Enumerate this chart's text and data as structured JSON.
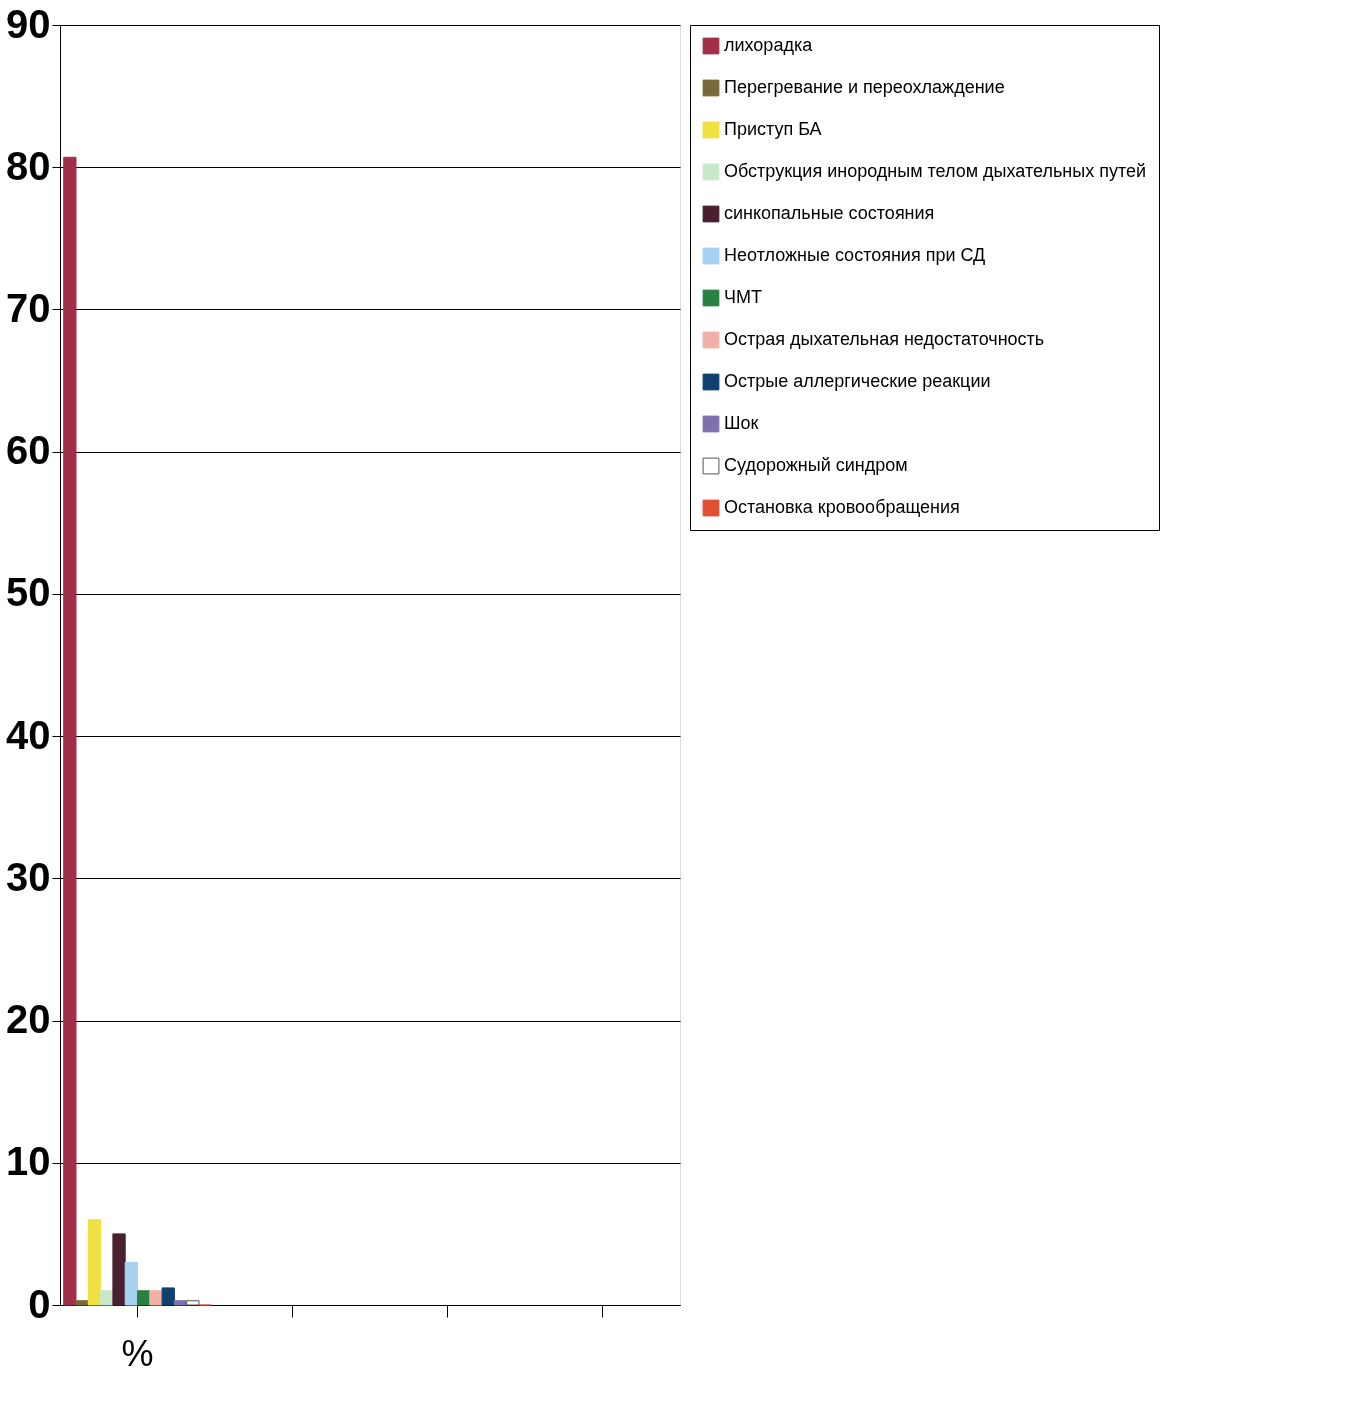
{
  "chart_data": {
    "type": "bar",
    "categories": [
      "%",
      null,
      null,
      null
    ],
    "xlabel": null,
    "series": [
      {
        "name": "лихорадка",
        "color": "#a0304a",
        "values": [
          80.7,
          null,
          null,
          null
        ]
      },
      {
        "name": "Перегревание и переохлаждение",
        "color": "#7a6a3a",
        "values": [
          0.3,
          null,
          null,
          null
        ]
      },
      {
        "name": "Приступ БА",
        "color": "#f0e040",
        "values": [
          6,
          null,
          null,
          null
        ]
      },
      {
        "name": "Обструкция инородным телом дыхательных путей",
        "color": "#c8e8c8",
        "values": [
          1,
          null,
          null,
          null
        ]
      },
      {
        "name": "синкопальные состояния",
        "color": "#4a2030",
        "values": [
          5,
          null,
          null,
          null
        ]
      },
      {
        "name": "Неотложные состояния при СД",
        "color": "#a8d0f0",
        "values": [
          3,
          null,
          null,
          null
        ]
      },
      {
        "name": "ЧМТ",
        "color": "#2a8040",
        "values": [
          1,
          null,
          null,
          null
        ]
      },
      {
        "name": "Острая дыхательная недостаточность",
        "color": "#f0b0a8",
        "values": [
          1,
          null,
          null,
          null
        ]
      },
      {
        "name": "Острые аллергические реакции",
        "color": "#104070",
        "values": [
          1.2,
          null,
          null,
          null
        ]
      },
      {
        "name": "Шок",
        "color": "#8070b0",
        "values": [
          0.3,
          null,
          null,
          null
        ]
      },
      {
        "name": "Судорожный синдром",
        "color": "#ffffff",
        "values": [
          0.3,
          null,
          null,
          null
        ]
      },
      {
        "name": "Остановка кровообращения",
        "color": "#e05030",
        "values": [
          0,
          null,
          null,
          null
        ]
      }
    ],
    "ylim": [
      0,
      90
    ],
    "yticks": [
      0,
      10,
      20,
      30,
      40,
      50,
      60,
      70,
      80,
      90
    ],
    "grid": "y",
    "legend": "right"
  }
}
